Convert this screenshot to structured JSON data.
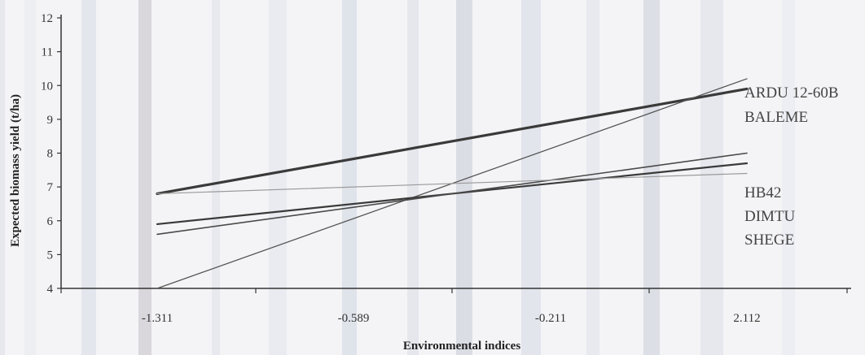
{
  "chart_data": {
    "type": "line",
    "title": "",
    "xlabel": "Environmental indices",
    "ylabel": "Expected biomass yield (t/ha)",
    "categories": [
      "-1.311",
      "-0.589",
      "-0.211",
      "2.112"
    ],
    "ylim": [
      4,
      12
    ],
    "yticks": [
      "4",
      "5",
      "6",
      "7",
      "8",
      "9",
      "10",
      "11",
      "12"
    ],
    "grid": false,
    "legend_position": "right",
    "legend": [
      "ARDU 12-60B",
      "BALEME",
      "HB42",
      "DIMTU",
      "SHEGE"
    ],
    "series": [
      {
        "name": "",
        "start": 6.8,
        "end": 9.9,
        "color": "#3a3a3a"
      },
      {
        "name": "",
        "start": 4.0,
        "end": 10.2,
        "color": "#555555"
      },
      {
        "name": "",
        "start": 5.9,
        "end": 7.7,
        "color": "#3a3a3a"
      },
      {
        "name": "",
        "start": 5.6,
        "end": 8.0,
        "color": "#4a4a4a"
      },
      {
        "name": "",
        "start": 6.8,
        "end": 7.4,
        "color": "#999999"
      }
    ]
  }
}
